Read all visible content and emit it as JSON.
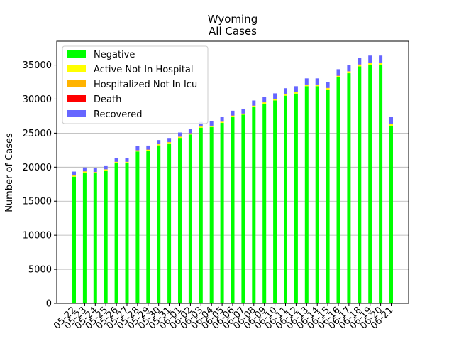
{
  "chart_data": {
    "type": "bar",
    "stacked": true,
    "title": "Wyoming",
    "subtitle": "All Cases",
    "xlabel": "",
    "ylabel": "Number of Cases",
    "ylim": [
      0,
      38500
    ],
    "yticks": [
      0,
      5000,
      10000,
      15000,
      20000,
      25000,
      30000,
      35000
    ],
    "grid": "y",
    "legend_position": "top-left",
    "categories": [
      "05-22",
      "05-23",
      "05-24",
      "05-25",
      "05-26",
      "05-27",
      "05-28",
      "05-29",
      "05-30",
      "05-31",
      "06-01",
      "06-02",
      "06-03",
      "06-04",
      "06-05",
      "06-06",
      "06-07",
      "06-08",
      "06-09",
      "06-10",
      "06-11",
      "06-12",
      "06-13",
      "06-14",
      "06-15",
      "06-16",
      "06-17",
      "06-18",
      "06-19",
      "06-20",
      "06-21"
    ],
    "series": [
      {
        "name": "Negative",
        "color": "#00ff00",
        "values": [
          18600,
          19200,
          19100,
          19500,
          20600,
          20600,
          22300,
          22400,
          23200,
          23500,
          24300,
          24800,
          25800,
          25900,
          26500,
          27400,
          27700,
          28800,
          29300,
          29800,
          30500,
          30800,
          31900,
          31900,
          31400,
          33200,
          33800,
          34800,
          35000,
          35000,
          26000
        ]
      },
      {
        "name": "Active Not In Hospital",
        "color": "#ffff00",
        "values": [
          150,
          150,
          150,
          150,
          150,
          150,
          150,
          150,
          150,
          150,
          150,
          150,
          150,
          150,
          150,
          150,
          150,
          200,
          200,
          200,
          200,
          200,
          200,
          200,
          200,
          200,
          250,
          250,
          300,
          300,
          300
        ]
      },
      {
        "name": "Hospitalized Not In Icu",
        "color": "#ffb300",
        "values": [
          20,
          20,
          20,
          20,
          20,
          20,
          20,
          20,
          20,
          20,
          20,
          20,
          20,
          20,
          20,
          20,
          20,
          20,
          20,
          20,
          20,
          20,
          20,
          20,
          20,
          20,
          20,
          20,
          20,
          20,
          20
        ]
      },
      {
        "name": "Death",
        "color": "#ff0000",
        "values": [
          20,
          20,
          20,
          20,
          20,
          20,
          20,
          20,
          20,
          20,
          20,
          20,
          20,
          20,
          20,
          20,
          20,
          20,
          20,
          20,
          20,
          20,
          20,
          20,
          20,
          20,
          20,
          20,
          20,
          20,
          20
        ]
      },
      {
        "name": "Recovered",
        "color": "#6666ff",
        "values": [
          560,
          560,
          560,
          560,
          560,
          560,
          570,
          580,
          590,
          600,
          600,
          620,
          640,
          650,
          650,
          700,
          700,
          750,
          750,
          800,
          850,
          850,
          900,
          900,
          900,
          950,
          950,
          1000,
          1050,
          1050,
          1050
        ]
      }
    ]
  }
}
